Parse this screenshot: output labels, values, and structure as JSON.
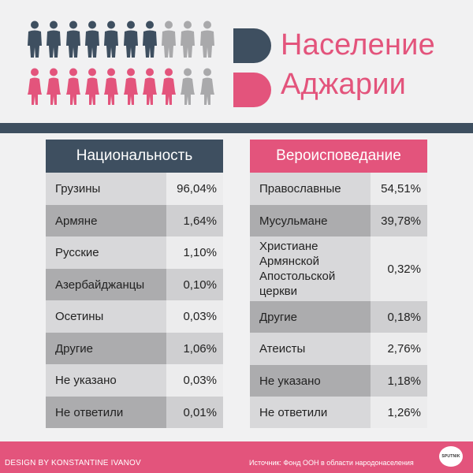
{
  "header": {
    "title_line1": "Население",
    "title_line2": "Аджарии",
    "colors": {
      "dark": "#3e4f60",
      "pink": "#e3547c",
      "gray": "#a9a9ab"
    },
    "people_icons": {
      "men": [
        "dark",
        "dark",
        "dark",
        "dark",
        "dark",
        "dark",
        "dark",
        "gray",
        "gray",
        "gray"
      ],
      "women": [
        "pink",
        "pink",
        "pink",
        "pink",
        "pink",
        "pink",
        "pink",
        "pink",
        "gray",
        "gray"
      ]
    }
  },
  "nationality": {
    "title": "Национальность",
    "rows": [
      {
        "name": "Грузины",
        "value": "96,04%"
      },
      {
        "name": "Армяне",
        "value": "1,64%"
      },
      {
        "name": "Русские",
        "value": "1,10%"
      },
      {
        "name": "Азербайджанцы",
        "value": "0,10%"
      },
      {
        "name": "Осетины",
        "value": "0,03%"
      },
      {
        "name": "Другие",
        "value": "1,06%"
      },
      {
        "name": "Не указано",
        "value": "0,03%"
      },
      {
        "name": "Не ответили",
        "value": "0,01%"
      }
    ]
  },
  "religion": {
    "title": "Вероисповедание",
    "rows": [
      {
        "name": "Православные",
        "value": "54,51%"
      },
      {
        "name": "Мусульмане",
        "value": "39,78%"
      },
      {
        "name": "Христиане Армянской Апостольской церкви",
        "value": "0,32%"
      },
      {
        "name": "Другие",
        "value": "0,18%"
      },
      {
        "name": "Атеисты",
        "value": "2,76%"
      },
      {
        "name": "Не указано",
        "value": "1,18%"
      },
      {
        "name": "Не ответили",
        "value": "1,26%"
      }
    ]
  },
  "footer": {
    "designer": "DESIGN BY KONSTANTINE IVANOV",
    "source": "Источник: Фонд ООН в области народонаселения",
    "brand": "SPUTNIK"
  }
}
